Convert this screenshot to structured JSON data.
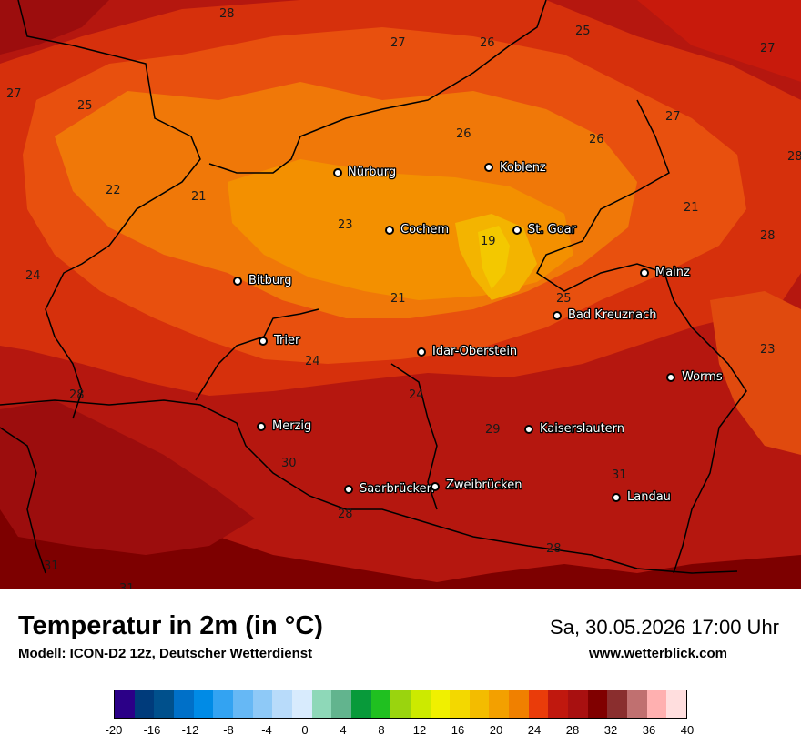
{
  "map": {
    "cities": [
      {
        "name": "Nürburg"
      },
      {
        "name": "Koblenz"
      },
      {
        "name": "Cochem"
      },
      {
        "name": "St. Goar"
      },
      {
        "name": "Bitburg"
      },
      {
        "name": "Mainz"
      },
      {
        "name": "Bad Kreuznach"
      },
      {
        "name": "Trier"
      },
      {
        "name": "Idar-Oberstein"
      },
      {
        "name": "Worms"
      },
      {
        "name": "Merzig"
      },
      {
        "name": "Kaiserslautern"
      },
      {
        "name": "Saarbrücken"
      },
      {
        "name": "Zweibrücken"
      },
      {
        "name": "Landau"
      }
    ],
    "iso_labels": [
      "28",
      "27",
      "26",
      "25",
      "27",
      "25",
      "27",
      "26",
      "27",
      "26",
      "28",
      "22",
      "21",
      "21",
      "28",
      "23",
      "19",
      "24",
      "25",
      "21",
      "23",
      "24",
      "28",
      "24",
      "29",
      "30",
      "31",
      "28",
      "28",
      "31",
      "31"
    ]
  },
  "footer": {
    "title": "Temperatur in 2m (in °C)",
    "model": "Modell: ICON-D2 12z, Deutscher Wetterdienst",
    "datetime": "Sa, 30.05.2026 17:00 Uhr",
    "website": "www.wetterblick.com"
  },
  "legend": {
    "ticks": [
      "-20",
      "-16",
      "-12",
      "-8",
      "-4",
      "0",
      "4",
      "8",
      "12",
      "16",
      "20",
      "24",
      "28",
      "32",
      "36",
      "40"
    ],
    "colors": [
      "#2b0087",
      "#003b7b",
      "#00508c",
      "#0070c8",
      "#008be6",
      "#33a3f2",
      "#66b8f5",
      "#8ec9f7",
      "#b8dbfa",
      "#d8ebfd",
      "#8ed8b8",
      "#62b48e",
      "#089a3a",
      "#20c020",
      "#9ad40e",
      "#ccea00",
      "#f0f000",
      "#f3d800",
      "#f3bc00",
      "#f3a000",
      "#f08000",
      "#ea3c0a",
      "#c0180e",
      "#a81010",
      "#800000",
      "#8a2e2e",
      "#c07070",
      "#ffb0b0",
      "#ffdede"
    ]
  }
}
